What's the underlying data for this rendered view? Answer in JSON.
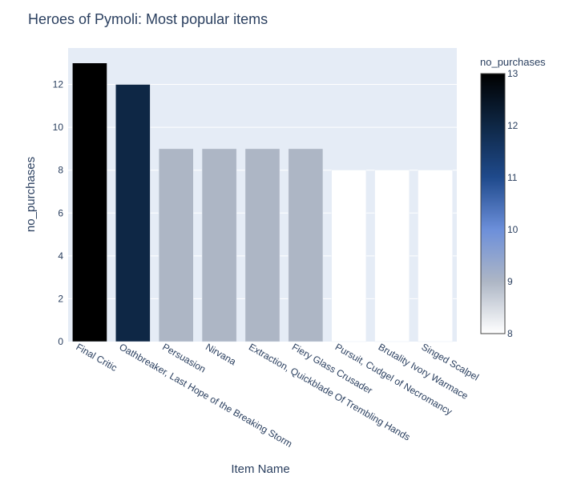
{
  "chart_data": {
    "type": "bar",
    "title": "Heroes of Pymoli: Most popular items",
    "xlabel": "Item Name",
    "ylabel": "no_purchases",
    "categories": [
      "Final Critic",
      "Oathbreaker, Last Hope of the Breaking Storm",
      "Persuasion",
      "Nirvana",
      "Extraction, Quickblade Of Trembling Hands",
      "Fiery Glass Crusader",
      "Pursuit, Cudgel of Necromancy",
      "Brutality Ivory Warmace",
      "Singed Scalpel"
    ],
    "values": [
      13,
      12,
      9,
      9,
      9,
      9,
      8,
      8,
      8
    ],
    "ylim": [
      0,
      13.7
    ],
    "yticks": [
      0,
      2,
      4,
      6,
      8,
      10,
      12
    ],
    "grid": true,
    "colorbar": {
      "title": "no_purchases",
      "range": [
        8,
        13
      ],
      "ticks": [
        8,
        9,
        10,
        11,
        12,
        13
      ],
      "colorscale": [
        [
          0.0,
          "#ffffff"
        ],
        [
          0.2,
          "#adb6c5"
        ],
        [
          0.4,
          "#6c8fda"
        ],
        [
          0.6,
          "#1f4a8c"
        ],
        [
          0.8,
          "#0e2745"
        ],
        [
          1.0,
          "#000000"
        ]
      ]
    },
    "colors": {
      "plot_bg": "#e5ecf6",
      "grid": "#ffffff",
      "text": "#2a3f5f"
    }
  }
}
